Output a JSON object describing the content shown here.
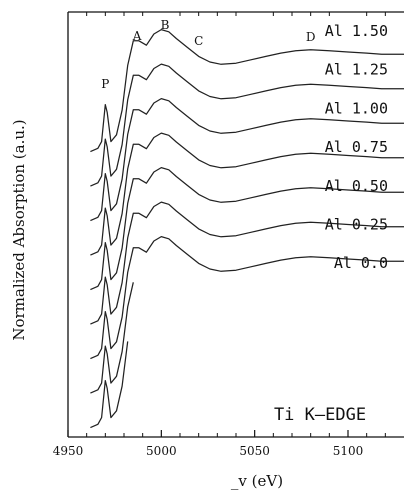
{
  "chart_data": {
    "type": "line",
    "title": "",
    "xlabel": "_v (eV)",
    "ylabel": "Normalized Absorption (a.u.)",
    "panel_label": "Ti K–EDGE",
    "xlim": [
      4950,
      5130
    ],
    "x_ticks": [
      4950,
      5000,
      5050,
      5100
    ],
    "x_tick_labels": [
      "4950",
      "5000",
      "5050",
      "5100"
    ],
    "grid": false,
    "legend": "none",
    "feature_labels": [
      {
        "text": "P",
        "x": 4970
      },
      {
        "text": "A",
        "x": 4987
      },
      {
        "text": "B",
        "x": 5002
      },
      {
        "text": "C",
        "x": 5020
      },
      {
        "text": "D",
        "x": 5080
      }
    ],
    "series": [
      {
        "name": "Al 1.50",
        "label": "Al 1.50"
      },
      {
        "name": "Al 1.25",
        "label": "Al 1.25"
      },
      {
        "name": "Al 1.00",
        "label": "Al 1.00"
      },
      {
        "name": "Al 0.75",
        "label": "Al 0.75"
      },
      {
        "name": "Al 0.50",
        "label": "Al 0.50"
      },
      {
        "name": "Al 0.25",
        "label": "Al 0.25"
      },
      {
        "name": "Al 0.0",
        "label": "Al 0.0"
      },
      {
        "name": "",
        "label": ""
      },
      {
        "name": "",
        "label": ""
      }
    ],
    "curve_points": {
      "x": [
        4962,
        4966,
        4968,
        4970,
        4971,
        4973,
        4976,
        4979,
        4982,
        4985,
        4988,
        4992,
        4996,
        5000,
        5004,
        5008,
        5014,
        5020,
        5026,
        5032,
        5040,
        5048,
        5056,
        5064,
        5072,
        5080,
        5090,
        5100,
        5110,
        5118,
        5122,
        5130
      ],
      "y": [
        0.03,
        0.06,
        0.12,
        0.45,
        0.38,
        0.12,
        0.18,
        0.4,
        0.8,
        1.02,
        1.02,
        0.98,
        1.08,
        1.12,
        1.1,
        1.04,
        0.96,
        0.88,
        0.83,
        0.81,
        0.82,
        0.85,
        0.88,
        0.91,
        0.93,
        0.94,
        0.93,
        0.92,
        0.91,
        0.9,
        0.9,
        0.9
      ]
    }
  }
}
